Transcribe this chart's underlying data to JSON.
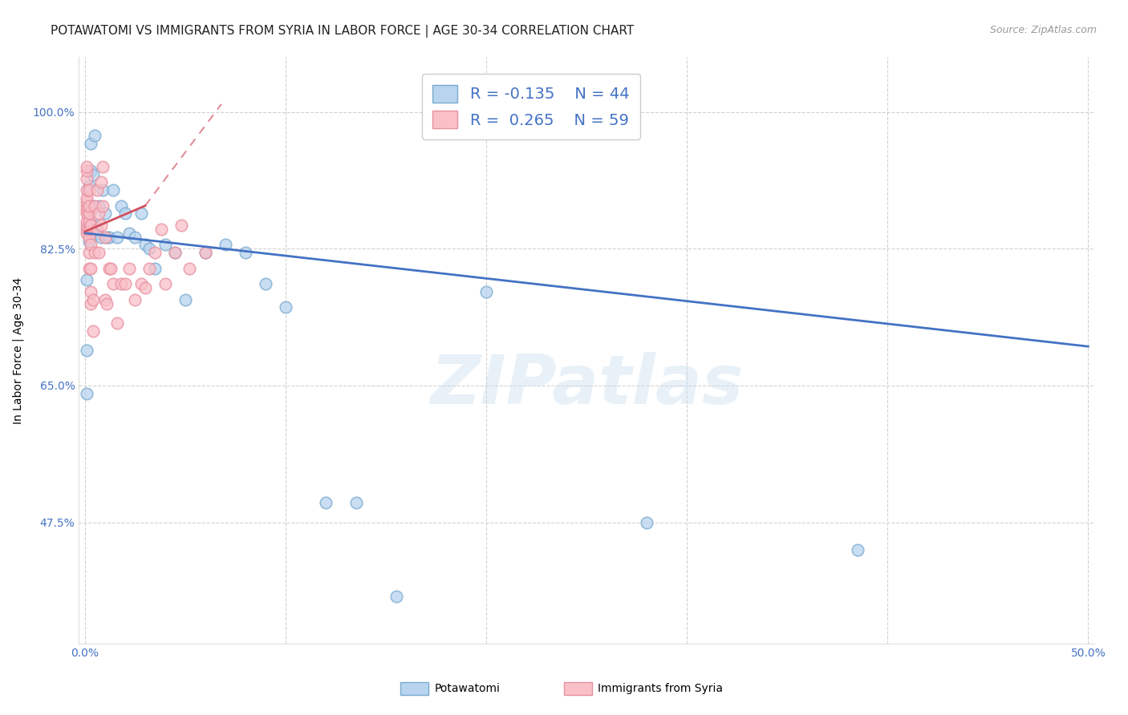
{
  "title": "POTAWATOMI VS IMMIGRANTS FROM SYRIA IN LABOR FORCE | AGE 30-34 CORRELATION CHART",
  "source": "Source: ZipAtlas.com",
  "ylabel": "In Labor Force | Age 30-34",
  "xlim": [
    -0.003,
    0.503
  ],
  "ylim": [
    0.32,
    1.07
  ],
  "xtick_positions": [
    0.0,
    0.1,
    0.2,
    0.3,
    0.4,
    0.5
  ],
  "xticklabels": [
    "0.0%",
    "",
    "",
    "",
    "",
    "50.0%"
  ],
  "ytick_positions": [
    0.475,
    0.65,
    0.825,
    1.0
  ],
  "yticklabels": [
    "47.5%",
    "65.0%",
    "82.5%",
    "100.0%"
  ],
  "blue_R": "-0.135",
  "blue_N": 44,
  "pink_R": "0.265",
  "pink_N": 59,
  "blue_fill_color": "#b8d4ee",
  "blue_edge_color": "#7aaad0",
  "pink_fill_color": "#f9c0c8",
  "pink_edge_color": "#e890a0",
  "blue_trend_color": "#4472c4",
  "pink_trend_color": "#d05060",
  "watermark": "ZIPatlas",
  "legend_label_blue": "Potawatomi",
  "legend_label_pink": "Immigrants from Syria",
  "blue_x": [
    0.001,
    0.001,
    0.001,
    0.002,
    0.002,
    0.002,
    0.003,
    0.003,
    0.003,
    0.004,
    0.004,
    0.005,
    0.005,
    0.006,
    0.007,
    0.008,
    0.009,
    0.01,
    0.011,
    0.012,
    0.014,
    0.016,
    0.018,
    0.02,
    0.022,
    0.025,
    0.028,
    0.03,
    0.032,
    0.035,
    0.04,
    0.045,
    0.05,
    0.06,
    0.07,
    0.08,
    0.09,
    0.1,
    0.12,
    0.135,
    0.155,
    0.2,
    0.28,
    0.385
  ],
  "blue_y": [
    0.695,
    0.64,
    0.785,
    0.835,
    0.87,
    0.905,
    0.875,
    0.96,
    0.925,
    0.88,
    0.92,
    0.855,
    0.97,
    0.845,
    0.88,
    0.84,
    0.9,
    0.87,
    0.84,
    0.84,
    0.9,
    0.84,
    0.88,
    0.87,
    0.845,
    0.84,
    0.87,
    0.83,
    0.825,
    0.8,
    0.83,
    0.82,
    0.76,
    0.82,
    0.83,
    0.82,
    0.78,
    0.75,
    0.5,
    0.5,
    0.38,
    0.77,
    0.475,
    0.44
  ],
  "pink_x": [
    0.001,
    0.001,
    0.001,
    0.001,
    0.001,
    0.001,
    0.001,
    0.001,
    0.001,
    0.001,
    0.001,
    0.001,
    0.001,
    0.002,
    0.002,
    0.002,
    0.002,
    0.002,
    0.002,
    0.002,
    0.002,
    0.003,
    0.003,
    0.003,
    0.003,
    0.003,
    0.004,
    0.004,
    0.005,
    0.005,
    0.006,
    0.006,
    0.007,
    0.007,
    0.008,
    0.008,
    0.009,
    0.009,
    0.01,
    0.01,
    0.011,
    0.012,
    0.013,
    0.014,
    0.016,
    0.018,
    0.02,
    0.022,
    0.025,
    0.028,
    0.03,
    0.032,
    0.035,
    0.038,
    0.04,
    0.045,
    0.048,
    0.052,
    0.06
  ],
  "pink_y": [
    0.845,
    0.85,
    0.855,
    0.86,
    0.87,
    0.875,
    0.88,
    0.885,
    0.89,
    0.9,
    0.915,
    0.925,
    0.93,
    0.8,
    0.82,
    0.84,
    0.85,
    0.86,
    0.87,
    0.88,
    0.9,
    0.755,
    0.77,
    0.8,
    0.83,
    0.855,
    0.72,
    0.76,
    0.82,
    0.88,
    0.85,
    0.9,
    0.82,
    0.87,
    0.855,
    0.91,
    0.88,
    0.93,
    0.76,
    0.84,
    0.755,
    0.8,
    0.8,
    0.78,
    0.73,
    0.78,
    0.78,
    0.8,
    0.76,
    0.78,
    0.775,
    0.8,
    0.82,
    0.85,
    0.78,
    0.82,
    0.855,
    0.8,
    0.82
  ],
  "blue_trend": [
    0.0,
    0.5,
    0.845,
    0.7
  ],
  "pink_solid_trend": [
    0.0,
    0.03,
    0.847,
    0.88
  ],
  "pink_dash_trend": [
    0.03,
    0.068,
    0.88,
    1.01
  ],
  "grid_color": "#cccccc",
  "bg_color": "#ffffff",
  "title_fontsize": 11,
  "ylabel_fontsize": 10,
  "tick_fontsize": 10,
  "tick_color_blue": "#4472c4",
  "source_color": "#999999",
  "source_fontsize": 9,
  "scatter_size": 110,
  "legend_box_color_blue": "#b8d4ee",
  "legend_box_edge_blue": "#7aaad0",
  "legend_box_color_pink": "#f9c0c8",
  "legend_box_edge_pink": "#e890a0"
}
